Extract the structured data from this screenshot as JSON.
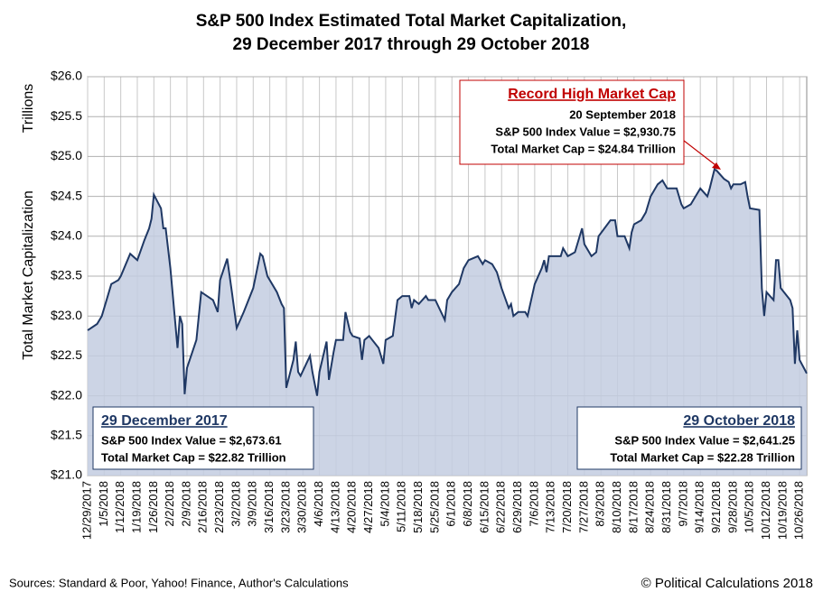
{
  "chart_data": {
    "type": "area",
    "title": [
      "S&P 500 Index Estimated Total Market Capitalization,",
      "29 December 2017 through 29 October 2018"
    ],
    "y_label": [
      "Trillions",
      "Total Market Capitalization"
    ],
    "source": "Sources: Standard & Poor, Yahoo! Finance, Author's Calculations",
    "copyright": "© Political Calculations 2018",
    "color": "#1f3864",
    "fill": "#c3cde0",
    "grid": true,
    "xlim": [
      "12/29/2017",
      "10/29/2018"
    ],
    "ylim": [
      21,
      26
    ],
    "yticks": [
      {
        "value": 21,
        "label": "$21.0"
      },
      {
        "value": 21.5,
        "label": "$21.5"
      },
      {
        "value": 22,
        "label": "$22.0"
      },
      {
        "value": 22.5,
        "label": "$22.5"
      },
      {
        "value": 23,
        "label": "$23.0"
      },
      {
        "value": 23.5,
        "label": "$23.5"
      },
      {
        "value": 24,
        "label": "$24.0"
      },
      {
        "value": 24.5,
        "label": "$24.5"
      },
      {
        "value": 25,
        "label": "$25.0"
      },
      {
        "value": 25.5,
        "label": "$25.5"
      },
      {
        "value": 26,
        "label": "$26.0"
      }
    ],
    "xticks": [
      "12/29/2017",
      "1/5/2018",
      "1/12/2018",
      "1/19/2018",
      "1/26/2018",
      "2/2/2018",
      "2/9/2018",
      "2/16/2018",
      "2/23/2018",
      "3/2/2018",
      "3/9/2018",
      "3/16/2018",
      "3/23/2018",
      "3/30/2018",
      "4/6/2018",
      "4/13/2018",
      "4/20/2018",
      "4/27/2018",
      "5/4/2018",
      "5/11/2018",
      "5/18/2018",
      "5/25/2018",
      "6/1/2018",
      "6/8/2018",
      "6/15/2018",
      "6/22/2018",
      "6/29/2018",
      "7/6/2018",
      "7/13/2018",
      "7/20/2018",
      "7/27/2018",
      "8/3/2018",
      "8/10/2018",
      "8/17/2018",
      "8/24/2018",
      "8/31/2018",
      "9/7/2018",
      "9/14/2018",
      "9/21/2018",
      "9/28/2018",
      "10/5/2018",
      "10/12/2018",
      "10/19/2018",
      "10/26/2018"
    ],
    "x": [
      "12/29/2017",
      "1/2/2018",
      "1/4/2018",
      "1/8/2018",
      "1/11/2018",
      "1/12/2018",
      "1/16/2018",
      "1/19/2018",
      "1/22/2018",
      "1/24/2018",
      "1/25/2018",
      "1/26/2018",
      "1/29/2018",
      "1/30/2018",
      "1/31/2018",
      "2/2/2018",
      "2/5/2018",
      "2/6/2018",
      "2/7/2018",
      "2/8/2018",
      "2/9/2018",
      "2/13/2018",
      "2/15/2018",
      "2/20/2018",
      "2/22/2018",
      "2/23/2018",
      "2/26/2018",
      "2/28/2018",
      "3/2/2018",
      "3/5/2018",
      "3/9/2018",
      "3/12/2018",
      "3/13/2018",
      "3/15/2018",
      "3/16/2018",
      "3/19/2018",
      "3/21/2018",
      "3/22/2018",
      "3/23/2018",
      "3/26/2018",
      "3/27/2018",
      "3/28/2018",
      "3/29/2018",
      "4/2/2018",
      "4/3/2018",
      "4/5/2018",
      "4/6/2018",
      "4/9/2018",
      "4/10/2018",
      "4/12/2018",
      "4/13/2018",
      "4/16/2018",
      "4/17/2018",
      "4/19/2018",
      "4/20/2018",
      "4/23/2018",
      "4/24/2018",
      "4/25/2018",
      "4/27/2018",
      "5/1/2018",
      "5/3/2018",
      "5/4/2018",
      "5/7/2018",
      "5/9/2018",
      "5/11/2018",
      "5/14/2018",
      "5/15/2018",
      "5/16/2018",
      "5/18/2018",
      "5/21/2018",
      "5/22/2018",
      "5/25/2018",
      "5/29/2018",
      "5/30/2018",
      "6/1/2018",
      "6/4/2018",
      "6/6/2018",
      "6/8/2018",
      "6/12/2018",
      "6/14/2018",
      "6/15/2018",
      "6/18/2018",
      "6/20/2018",
      "6/22/2018",
      "6/25/2018",
      "6/26/2018",
      "6/27/2018",
      "6/29/2018",
      "7/2/2018",
      "7/3/2018",
      "7/6/2018",
      "7/9/2018",
      "7/10/2018",
      "7/11/2018",
      "7/12/2018",
      "7/17/2018",
      "7/18/2018",
      "7/20/2018",
      "7/23/2018",
      "7/26/2018",
      "7/27/2018",
      "7/30/2018",
      "8/1/2018",
      "8/2/2018",
      "8/7/2018",
      "8/9/2018",
      "8/10/2018",
      "8/13/2018",
      "8/15/2018",
      "8/16/2018",
      "8/17/2018",
      "8/20/2018",
      "8/22/2018",
      "8/24/2018",
      "8/27/2018",
      "8/29/2018",
      "8/31/2018",
      "9/4/2018",
      "9/6/2018",
      "9/7/2018",
      "9/10/2018",
      "9/12/2018",
      "9/14/2018",
      "9/17/2018",
      "9/18/2018",
      "9/20/2018",
      "9/21/2018",
      "9/24/2018",
      "9/26/2018",
      "9/27/2018",
      "9/28/2018",
      "10/1/2018",
      "10/3/2018",
      "10/4/2018",
      "10/5/2018",
      "10/9/2018",
      "10/10/2018",
      "10/11/2018",
      "10/12/2018",
      "10/15/2018",
      "10/16/2018",
      "10/17/2018",
      "10/18/2018",
      "10/22/2018",
      "10/23/2018",
      "10/24/2018",
      "10/25/2018",
      "10/26/2018",
      "10/29/2018"
    ],
    "values": [
      22.82,
      22.9,
      23.0,
      23.4,
      23.45,
      23.5,
      23.78,
      23.7,
      23.95,
      24.1,
      24.22,
      24.52,
      24.35,
      24.1,
      24.1,
      23.6,
      22.6,
      23.0,
      22.9,
      22.02,
      22.35,
      22.7,
      23.3,
      23.2,
      23.05,
      23.45,
      23.72,
      23.3,
      22.85,
      23.05,
      23.35,
      23.78,
      23.75,
      23.5,
      23.45,
      23.3,
      23.15,
      23.1,
      22.1,
      22.45,
      22.68,
      22.3,
      22.25,
      22.5,
      22.3,
      22.0,
      22.3,
      22.68,
      22.2,
      22.55,
      22.7,
      22.7,
      23.05,
      22.8,
      22.75,
      22.72,
      22.45,
      22.7,
      22.75,
      22.6,
      22.4,
      22.7,
      22.75,
      23.2,
      23.25,
      23.25,
      23.1,
      23.2,
      23.15,
      23.25,
      23.2,
      23.2,
      22.95,
      23.2,
      23.3,
      23.4,
      23.6,
      23.7,
      23.75,
      23.65,
      23.7,
      23.65,
      23.55,
      23.35,
      23.1,
      23.15,
      23.0,
      23.05,
      23.05,
      23.0,
      23.4,
      23.6,
      23.7,
      23.55,
      23.75,
      23.75,
      23.85,
      23.75,
      23.8,
      24.1,
      23.9,
      23.75,
      23.8,
      24.0,
      24.2,
      24.2,
      24.0,
      24.0,
      23.85,
      24.05,
      24.15,
      24.2,
      24.3,
      24.5,
      24.65,
      24.7,
      24.6,
      24.6,
      24.4,
      24.35,
      24.4,
      24.5,
      24.6,
      24.5,
      24.6,
      24.84,
      24.82,
      24.72,
      24.68,
      24.6,
      24.65,
      24.65,
      24.68,
      24.5,
      24.35,
      24.33,
      23.35,
      23.0,
      23.3,
      23.2,
      23.7,
      23.7,
      23.35,
      23.2,
      23.1,
      22.4,
      22.82,
      22.45,
      22.28
    ],
    "annotations": [
      {
        "lines": [
          "Record High Market Cap",
          "20 September 2018",
          "S&P 500 Index Value = $2,930.75",
          "Total Market Cap = $24.84 Trillion"
        ]
      },
      {
        "lines": [
          "29 December 2017",
          "S&P 500 Index Value = $2,673.61",
          "Total Market Cap = $22.82 Trillion"
        ]
      },
      {
        "lines": [
          "29 October 2018",
          "S&P 500 Index Value = $2,641.25",
          "Total Market Cap = $22.28 Trillion"
        ]
      }
    ]
  }
}
